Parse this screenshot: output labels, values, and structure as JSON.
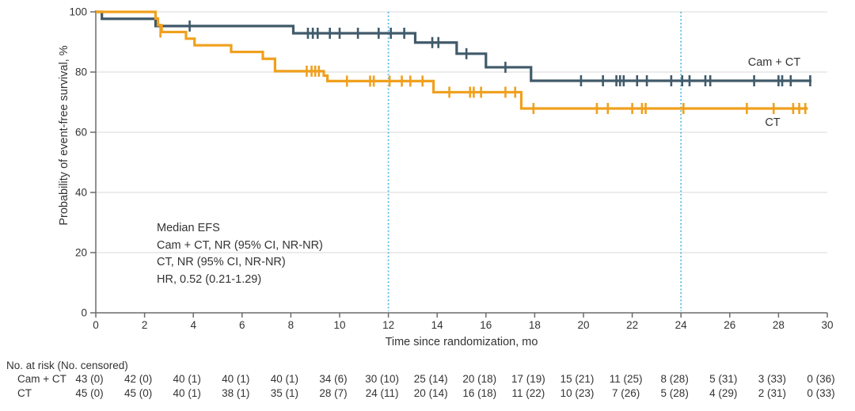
{
  "chart_data": {
    "type": "line",
    "subtype": "kaplan_meier_step",
    "title": "",
    "xlabel": "Time since randomization, mo",
    "ylabel": "Probability of event-free survival, %",
    "xlim": [
      0,
      30
    ],
    "ylim": [
      0,
      100
    ],
    "xticks": [
      0,
      2,
      4,
      6,
      8,
      10,
      12,
      14,
      16,
      18,
      20,
      22,
      24,
      26,
      28,
      30
    ],
    "yticks": [
      0,
      20,
      40,
      60,
      80,
      100
    ],
    "grid": "horizontal-light",
    "reference_lines_x": [
      12,
      24
    ],
    "annotation": [
      "Median EFS",
      "Cam + CT, NR (95% CI, NR-NR)",
      "CT, NR (95% CI, NR-NR)",
      "HR, 0.52 (0.21-1.29)"
    ],
    "series": [
      {
        "name": "Cam + CT",
        "color": "#405a6a",
        "steps": [
          [
            0,
            100
          ],
          [
            0.25,
            97.7
          ],
          [
            2.45,
            95.3
          ],
          [
            8.1,
            92.9
          ],
          [
            13.1,
            89.8
          ],
          [
            14.8,
            86.1
          ],
          [
            16.0,
            81.6
          ],
          [
            17.85,
            77.1
          ],
          [
            29.35,
            77.1
          ]
        ],
        "censors": [
          [
            3.85,
            95.3
          ],
          [
            8.7,
            92.9
          ],
          [
            8.9,
            92.9
          ],
          [
            9.1,
            92.9
          ],
          [
            9.6,
            92.9
          ],
          [
            10.0,
            92.9
          ],
          [
            10.75,
            92.9
          ],
          [
            11.6,
            92.9
          ],
          [
            12.1,
            92.9
          ],
          [
            12.65,
            92.9
          ],
          [
            13.8,
            89.8
          ],
          [
            14.05,
            89.8
          ],
          [
            15.2,
            86.1
          ],
          [
            16.8,
            81.6
          ],
          [
            19.9,
            77.1
          ],
          [
            20.8,
            77.1
          ],
          [
            21.35,
            77.1
          ],
          [
            21.5,
            77.1
          ],
          [
            21.65,
            77.1
          ],
          [
            22.2,
            77.1
          ],
          [
            22.6,
            77.1
          ],
          [
            23.6,
            77.1
          ],
          [
            24.05,
            77.1
          ],
          [
            24.35,
            77.1
          ],
          [
            25.0,
            77.1
          ],
          [
            25.2,
            77.1
          ],
          [
            27.0,
            77.1
          ],
          [
            28.0,
            77.1
          ],
          [
            28.15,
            77.1
          ],
          [
            28.5,
            77.1
          ],
          [
            29.3,
            77.1
          ]
        ]
      },
      {
        "name": "CT",
        "color": "#f0a01e",
        "steps": [
          [
            0,
            100
          ],
          [
            2.45,
            97.8
          ],
          [
            2.55,
            95.6
          ],
          [
            2.7,
            93.3
          ],
          [
            3.7,
            91.1
          ],
          [
            4.05,
            88.9
          ],
          [
            5.55,
            86.7
          ],
          [
            6.85,
            84.4
          ],
          [
            7.35,
            80.3
          ],
          [
            9.35,
            78.8
          ],
          [
            9.5,
            77.0
          ],
          [
            13.85,
            73.3
          ],
          [
            17.45,
            67.9
          ],
          [
            29.2,
            67.9
          ]
        ],
        "censors": [
          [
            2.65,
            93.3
          ],
          [
            8.65,
            80.3
          ],
          [
            8.85,
            80.3
          ],
          [
            9.0,
            80.3
          ],
          [
            9.15,
            80.3
          ],
          [
            10.3,
            77.0
          ],
          [
            11.25,
            77.0
          ],
          [
            11.4,
            77.0
          ],
          [
            12.05,
            77.0
          ],
          [
            12.55,
            77.0
          ],
          [
            12.9,
            77.0
          ],
          [
            13.4,
            77.0
          ],
          [
            14.5,
            73.3
          ],
          [
            15.35,
            73.3
          ],
          [
            15.5,
            73.3
          ],
          [
            15.8,
            73.3
          ],
          [
            16.8,
            73.3
          ],
          [
            17.2,
            73.3
          ],
          [
            17.95,
            67.9
          ],
          [
            20.55,
            67.9
          ],
          [
            21.0,
            67.9
          ],
          [
            22.0,
            67.9
          ],
          [
            22.4,
            67.9
          ],
          [
            22.55,
            67.9
          ],
          [
            24.1,
            67.9
          ],
          [
            26.7,
            67.9
          ],
          [
            27.8,
            67.9
          ],
          [
            28.6,
            67.9
          ],
          [
            28.85,
            67.9
          ],
          [
            29.1,
            67.9
          ]
        ]
      }
    ],
    "colors": {
      "reference_line": "#41b3e6",
      "grid": "#ececec",
      "axis": "#6b6b6b",
      "text": "#333333"
    }
  },
  "risk_table": {
    "header": "No. at risk (No. censored)",
    "times": [
      0,
      2,
      4,
      6,
      8,
      10,
      12,
      14,
      16,
      18,
      20,
      22,
      24,
      26,
      28,
      30
    ],
    "rows": [
      {
        "label": "Cam + CT",
        "values": [
          "43 (0)",
          "42 (0)",
          "40 (1)",
          "40 (1)",
          "40 (1)",
          "34 (6)",
          "30 (10)",
          "25 (14)",
          "20 (18)",
          "17 (19)",
          "15 (21)",
          "11 (25)",
          "8 (28)",
          "5 (31)",
          "3 (33)",
          "0 (36)"
        ]
      },
      {
        "label": "CT",
        "values": [
          "45 (0)",
          "45 (0)",
          "40 (1)",
          "38 (1)",
          "35 (1)",
          "28 (7)",
          "24 (11)",
          "20 (14)",
          "16 (18)",
          "11 (22)",
          "10 (23)",
          "7 (26)",
          "5 (28)",
          "4 (29)",
          "2 (31)",
          "0 (33)"
        ]
      }
    ]
  }
}
